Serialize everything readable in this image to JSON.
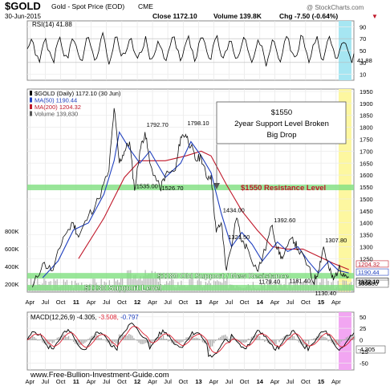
{
  "header": {
    "symbol": "$GOLD",
    "description": "Gold - Spot Price (EOD)",
    "exchange": "CME",
    "date": "30-Jun-2015",
    "close": "Close 1172.10",
    "volume": "Volume 139.8K",
    "chg": "Chg -7.50 (-0.64%)",
    "chg_arrow": "▼",
    "watermark": "@ StockCharts.com"
  },
  "rsi": {
    "label": "RSI(14) 41.88",
    "current": "41.88",
    "levels": [
      90,
      70,
      50,
      30,
      10
    ],
    "ylim": [
      0,
      100
    ],
    "overbought": 70,
    "oversold": 30
  },
  "price": {
    "legend": [
      {
        "text": "$GOLD (Daily) 1172.10 (30 Jun)",
        "color": "#000000"
      },
      {
        "text": "MA(50) 1190.44",
        "color": "#1f3fbf"
      },
      {
        "text": "MA(200) 1204.32",
        "color": "#c0182a"
      },
      {
        "text": "Volume 139,830",
        "color": "#555555"
      }
    ],
    "ylim": [
      1110,
      1960
    ],
    "y_ticks": [
      1950,
      1900,
      1850,
      1800,
      1750,
      1700,
      1650,
      1600,
      1550,
      1500,
      1450,
      1400,
      1350,
      1300,
      1250,
      1150
    ],
    "volume_ticks": [
      "800K",
      "600K",
      "400K",
      "200K"
    ],
    "right_labels": [
      {
        "text": "1204.32",
        "value": 1204.32,
        "color": "#c0182a"
      },
      {
        "text": "1190.44",
        "value": 1190.44,
        "color": "#1f3fbf"
      },
      {
        "text": "1172.10",
        "value": 1172.1,
        "color": "#000000"
      }
    ],
    "volume_label": "139830"
  },
  "chart_data": {
    "type": "line",
    "title": "$GOLD Gold - Spot Price (EOD) CME",
    "x_range": [
      "2010-04",
      "2015-06"
    ],
    "x_tick_labels": [
      "Apr",
      "Jul",
      "Oct",
      "11",
      "Apr",
      "Jul",
      "Oct",
      "12",
      "Apr",
      "Jul",
      "Oct",
      "13",
      "Apr",
      "Jul",
      "Oct",
      "14",
      "Apr",
      "Jul",
      "Oct",
      "15",
      "Apr"
    ],
    "series": [
      {
        "name": "$GOLD (Daily)",
        "points": [
          [
            "2010-04",
            1130
          ],
          [
            "2010-06",
            1230
          ],
          [
            "2010-08",
            1200
          ],
          [
            "2010-10",
            1340
          ],
          [
            "2010-12",
            1400
          ],
          [
            "2011-01",
            1340
          ],
          [
            "2011-03",
            1430
          ],
          [
            "2011-05",
            1500
          ],
          [
            "2011-07",
            1620
          ],
          [
            "2011-08",
            1880
          ],
          [
            "2011-09",
            1650
          ],
          [
            "2011-10",
            1700
          ],
          [
            "2011-11",
            1740
          ],
          [
            "2011-12",
            1535
          ],
          [
            "2012-01",
            1700
          ],
          [
            "2012-02",
            1780
          ],
          [
            "2012-03",
            1650
          ],
          [
            "2012-05",
            1540
          ],
          [
            "2012-06",
            1600
          ],
          [
            "2012-08",
            1620
          ],
          [
            "2012-09",
            1760
          ],
          [
            "2012-10",
            1770
          ],
          [
            "2012-11",
            1720
          ],
          [
            "2012-12",
            1660
          ],
          [
            "2013-01",
            1680
          ],
          [
            "2013-02",
            1590
          ],
          [
            "2013-03",
            1600
          ],
          [
            "2013-04",
            1360
          ],
          [
            "2013-05",
            1400
          ],
          [
            "2013-06",
            1200
          ],
          [
            "2013-08",
            1420
          ],
          [
            "2013-09",
            1320
          ],
          [
            "2013-10",
            1300
          ],
          [
            "2013-12",
            1200
          ],
          [
            "2014-01",
            1250
          ],
          [
            "2014-03",
            1390
          ],
          [
            "2014-04",
            1290
          ],
          [
            "2014-05",
            1250
          ],
          [
            "2014-07",
            1340
          ],
          [
            "2014-08",
            1290
          ],
          [
            "2014-10",
            1220
          ],
          [
            "2014-11",
            1150
          ],
          [
            "2014-12",
            1200
          ],
          [
            "2015-01",
            1300
          ],
          [
            "2015-02",
            1210
          ],
          [
            "2015-03",
            1160
          ],
          [
            "2015-04",
            1210
          ],
          [
            "2015-05",
            1190
          ],
          [
            "2015-06",
            1172.1
          ]
        ]
      },
      {
        "name": "MA(50)",
        "points": [
          [
            "2010-06",
            1170
          ],
          [
            "2010-09",
            1240
          ],
          [
            "2010-12",
            1370
          ],
          [
            "2011-03",
            1400
          ],
          [
            "2011-06",
            1520
          ],
          [
            "2011-08",
            1660
          ],
          [
            "2011-09",
            1780
          ],
          [
            "2011-11",
            1710
          ],
          [
            "2012-01",
            1650
          ],
          [
            "2012-03",
            1700
          ],
          [
            "2012-06",
            1590
          ],
          [
            "2012-09",
            1650
          ],
          [
            "2012-11",
            1740
          ],
          [
            "2013-01",
            1680
          ],
          [
            "2013-03",
            1610
          ],
          [
            "2013-05",
            1440
          ],
          [
            "2013-07",
            1300
          ],
          [
            "2013-09",
            1360
          ],
          [
            "2013-11",
            1310
          ],
          [
            "2014-01",
            1240
          ],
          [
            "2014-04",
            1320
          ],
          [
            "2014-06",
            1280
          ],
          [
            "2014-08",
            1300
          ],
          [
            "2014-10",
            1240
          ],
          [
            "2014-12",
            1190
          ],
          [
            "2015-02",
            1240
          ],
          [
            "2015-04",
            1200
          ],
          [
            "2015-06",
            1190.44
          ]
        ]
      },
      {
        "name": "MA(200)",
        "points": [
          [
            "2011-01",
            1250
          ],
          [
            "2011-06",
            1420
          ],
          [
            "2011-10",
            1590
          ],
          [
            "2012-01",
            1660
          ],
          [
            "2012-06",
            1660
          ],
          [
            "2012-10",
            1680
          ],
          [
            "2013-01",
            1700
          ],
          [
            "2013-03",
            1680
          ],
          [
            "2013-06",
            1560
          ],
          [
            "2013-09",
            1450
          ],
          [
            "2013-12",
            1370
          ],
          [
            "2014-03",
            1300
          ],
          [
            "2014-06",
            1290
          ],
          [
            "2014-09",
            1290
          ],
          [
            "2014-12",
            1260
          ],
          [
            "2015-03",
            1230
          ],
          [
            "2015-06",
            1204.32
          ]
        ]
      }
    ],
    "annotations": [
      {
        "text": "1535.00",
        "date": "2011-12",
        "value": 1535
      },
      {
        "text": "1792.70",
        "date": "2012-02",
        "value": 1792.7
      },
      {
        "text": "1798.10",
        "date": "2012-10",
        "value": 1798.1
      },
      {
        "text": "1526.70",
        "date": "2012-05",
        "value": 1526.7
      },
      {
        "text": "1434.00",
        "date": "2013-05",
        "value": 1434
      },
      {
        "text": "1392.60",
        "date": "2014-03",
        "value": 1392.6
      },
      {
        "text": "1321.50",
        "date": "2013-06",
        "value": 1321.5
      },
      {
        "text": "1307.80",
        "date": "2015-01",
        "value": 1307.8
      },
      {
        "text": "1179.40",
        "date": "2013-12",
        "value": 1179.4
      },
      {
        "text": "1181.40",
        "date": "2014-06",
        "value": 1181.4
      },
      {
        "text": "1130.40",
        "date": "2014-11",
        "value": 1130.4
      }
    ],
    "levels": [
      {
        "text": "$1550  Resistance Level",
        "value": 1550
      },
      {
        "text": "$1180 Old Support / New Resistance",
        "value": 1180
      },
      {
        "text": "$1130 Support Level",
        "value": 1130
      }
    ],
    "callout": {
      "line1": "$1550",
      "line2": "2year Support Level Broken",
      "line3": "Big Drop"
    },
    "ylim": [
      1110,
      1960
    ]
  },
  "macd": {
    "label_prefix": "MACD(12,26,9) -4.305,",
    "label_signal": " -3.508,",
    "label_hist": " -0.797",
    "current": "-4.305",
    "levels": [
      50,
      25,
      0,
      -25,
      -50
    ],
    "ylim": [
      -65,
      60
    ]
  },
  "footer": {
    "url": "www.Free-Bullion-Investment-Guide.com"
  },
  "colors": {
    "price": "#111111",
    "ma50": "#1f3fbf",
    "ma200": "#c0182a",
    "green_band": "#7fe07f",
    "yellow_band": "#fdf7a0",
    "cyan_band": "#a6e6f2",
    "pink_band": "#f2a6f2"
  }
}
